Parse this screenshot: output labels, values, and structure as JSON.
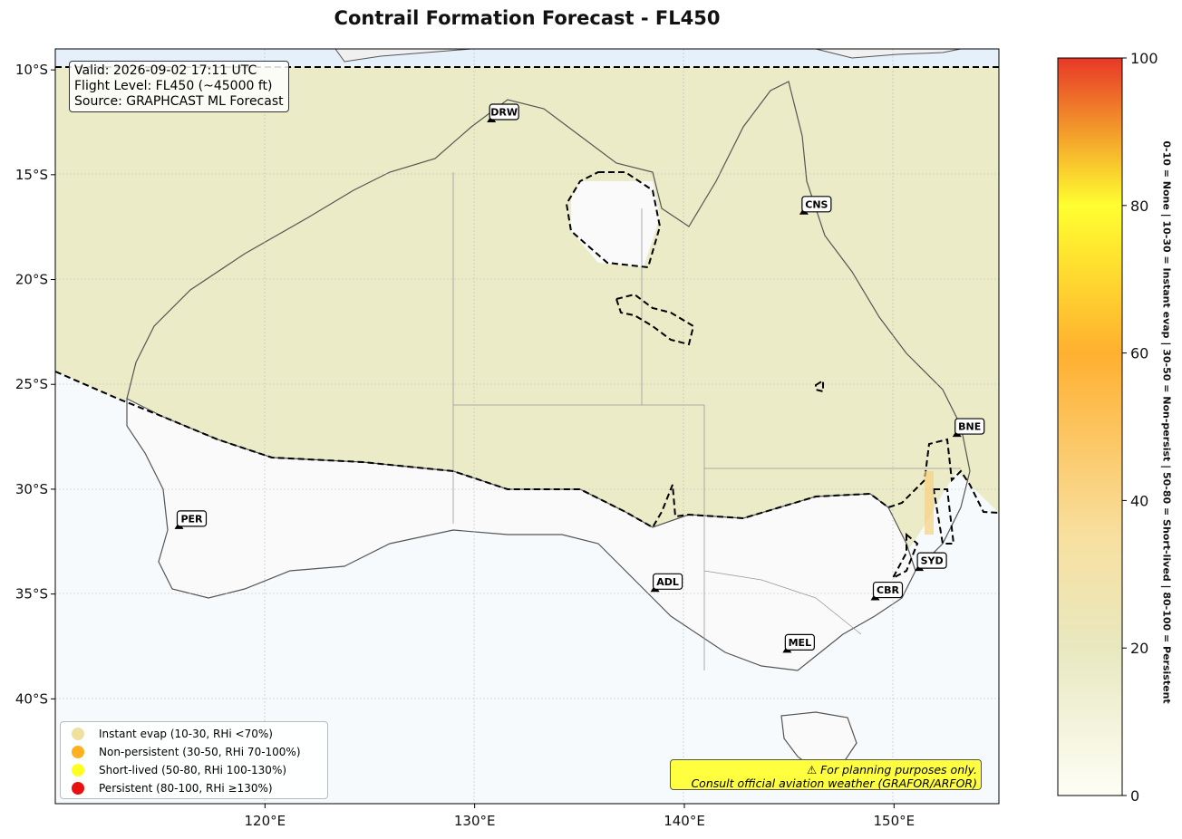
{
  "title": "Contrail Formation Forecast - FL450",
  "info": {
    "valid": "Valid: 2026-09-02 17:11 UTC",
    "flight_level": "Flight Level: FL450 (~45000 ft)",
    "source": "Source: GRAPHCAST ML Forecast"
  },
  "axes": {
    "lon_ticks": [
      "120°E",
      "130°E",
      "140°E",
      "150°E"
    ],
    "lat_ticks": [
      "10°S",
      "15°S",
      "20°S",
      "25°S",
      "30°S",
      "35°S",
      "40°S"
    ],
    "lon_range": [
      110,
      155
    ],
    "lat_range": [
      -45,
      -9
    ]
  },
  "cities": [
    {
      "code": "DRW",
      "lon": 130.8,
      "lat": -12.5
    },
    {
      "code": "CNS",
      "lon": 145.7,
      "lat": -16.9
    },
    {
      "code": "BNE",
      "lon": 153.0,
      "lat": -27.5
    },
    {
      "code": "PER",
      "lon": 115.9,
      "lat": -31.9
    },
    {
      "code": "ADL",
      "lon": 138.6,
      "lat": -34.9
    },
    {
      "code": "SYD",
      "lon": 151.2,
      "lat": -33.9
    },
    {
      "code": "CBR",
      "lon": 149.1,
      "lat": -35.3
    },
    {
      "code": "MEL",
      "lon": 144.9,
      "lat": -37.8
    }
  ],
  "legend": [
    {
      "label": "Instant evap (10-30, RHi <70%)",
      "color": "#f0e0a0"
    },
    {
      "label": "Non-persistent (30-50, RHi 70-100%)",
      "color": "#ffb020"
    },
    {
      "label": "Short-lived (50-80, RHi 100-130%)",
      "color": "#ffff20"
    },
    {
      "label": "Persistent (80-100, RHi ≥130%)",
      "color": "#e81010"
    }
  ],
  "warning": {
    "line1": "⚠ For planning purposes only.",
    "line2": "Consult official aviation weather (GRAFOR/ARFOR)"
  },
  "colorbar": {
    "ticks": [
      "0",
      "20",
      "40",
      "60",
      "80",
      "100"
    ],
    "min": 0,
    "max": 100,
    "stops": [
      "#fefef6",
      "#e8e8c0",
      "#f8e0a0",
      "#ffb030",
      "#ffff30",
      "#e83828"
    ],
    "title": "0-10 = None  |  10-30 = Instant evap  |  30-50 = Non-persist  |  50-80 = Short-lived  |  80-100 = Persistent"
  }
}
